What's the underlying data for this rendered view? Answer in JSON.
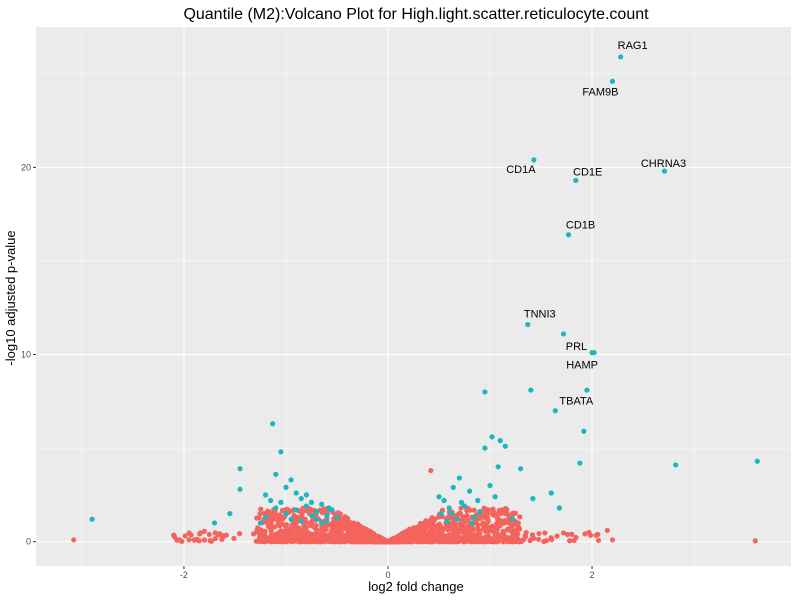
{
  "chart_data": {
    "type": "scatter",
    "title": "Quantile (M2):Volcano Plot for High.light.scatter.reticulocyte.count",
    "xlabel": "log2 fold change",
    "ylabel": "-log10 adjusted p-value",
    "xlim": [
      -3.45,
      3.95
    ],
    "ylim": [
      -1.3,
      27.5
    ],
    "x_ticks": [
      -2,
      0,
      2
    ],
    "x_tick_labels": [
      "-2",
      "0",
      "2"
    ],
    "y_ticks": [
      0,
      10,
      20
    ],
    "y_tick_labels": [
      "0",
      "10",
      "20"
    ],
    "grid": true,
    "legend": "none",
    "colors": {
      "significant": "#19b8be",
      "not_significant": "#f4645d",
      "panel": "#ebebeb",
      "grid": "#ffffff"
    },
    "labeled_points": [
      {
        "label": "RAG1",
        "x": 2.28,
        "y": 25.9
      },
      {
        "label": "FAM9B",
        "x": 2.2,
        "y": 24.6
      },
      {
        "label": "CD1A",
        "x": 1.43,
        "y": 20.4
      },
      {
        "label": "CHRNA3",
        "x": 2.71,
        "y": 19.8
      },
      {
        "label": "CD1E",
        "x": 1.84,
        "y": 19.3
      },
      {
        "label": "CD1B",
        "x": 1.77,
        "y": 16.4
      },
      {
        "label": "TNNI3",
        "x": 1.37,
        "y": 11.6
      },
      {
        "label": "PRL",
        "x": 1.72,
        "y": 11.1
      },
      {
        "label": "HAMP",
        "x": 2.02,
        "y": 10.1
      },
      {
        "label": "TBATA",
        "x": 1.64,
        "y": 7.0
      }
    ],
    "significant_points": [
      [
        -2.9,
        1.2
      ],
      [
        -1.7,
        1.0
      ],
      [
        -1.55,
        1.5
      ],
      [
        -1.45,
        3.9
      ],
      [
        -1.45,
        2.8
      ],
      [
        -1.13,
        6.3
      ],
      [
        -1.05,
        4.8
      ],
      [
        -1.1,
        3.6
      ],
      [
        -1.2,
        2.5
      ],
      [
        -1.0,
        2.9
      ],
      [
        -0.95,
        3.3
      ],
      [
        -0.9,
        2.6
      ],
      [
        -1.15,
        2.2
      ],
      [
        -1.05,
        2.1
      ],
      [
        -0.85,
        2.3
      ],
      [
        -0.8,
        1.9
      ],
      [
        -0.75,
        2.1
      ],
      [
        -0.7,
        1.6
      ],
      [
        -0.65,
        2.0
      ],
      [
        -0.6,
        1.4
      ],
      [
        -0.55,
        1.7
      ],
      [
        -0.5,
        1.3
      ],
      [
        -0.75,
        1.4
      ],
      [
        -0.9,
        1.7
      ],
      [
        -1.0,
        1.5
      ],
      [
        -0.95,
        1.2
      ],
      [
        -1.1,
        1.8
      ],
      [
        -1.2,
        1.3
      ],
      [
        -1.25,
        1.0
      ],
      [
        -0.85,
        1.1
      ],
      [
        -0.7,
        1.2
      ],
      [
        -0.65,
        1.0
      ],
      [
        -0.8,
        2.5
      ],
      [
        -0.6,
        1.1
      ],
      [
        -0.58,
        1.8
      ],
      [
        0.5,
        2.4
      ],
      [
        0.55,
        2.2
      ],
      [
        0.62,
        1.5
      ],
      [
        0.7,
        3.4
      ],
      [
        0.6,
        1.8
      ],
      [
        0.75,
        1.9
      ],
      [
        0.8,
        2.7
      ],
      [
        0.85,
        1.3
      ],
      [
        0.9,
        1.6
      ],
      [
        0.68,
        1.2
      ],
      [
        0.72,
        2.1
      ],
      [
        0.64,
        2.9
      ],
      [
        0.58,
        1.1
      ],
      [
        0.82,
        1.0
      ],
      [
        0.95,
        8.0
      ],
      [
        0.95,
        5.0
      ],
      [
        1.0,
        3.0
      ],
      [
        1.05,
        2.4
      ],
      [
        1.02,
        5.6
      ],
      [
        1.1,
        5.4
      ],
      [
        1.15,
        5.1
      ],
      [
        1.08,
        4.0
      ],
      [
        1.3,
        3.9
      ],
      [
        1.4,
        8.1
      ],
      [
        1.42,
        2.3
      ],
      [
        1.6,
        2.6
      ],
      [
        1.68,
        1.8
      ],
      [
        1.88,
        4.2
      ],
      [
        1.92,
        5.9
      ],
      [
        1.95,
        8.1
      ],
      [
        2.0,
        10.1
      ],
      [
        2.82,
        4.1
      ],
      [
        3.62,
        4.3
      ],
      [
        0.52,
        1.5
      ],
      [
        0.88,
        2.2
      ],
      [
        1.22,
        1.2
      ]
    ]
  }
}
